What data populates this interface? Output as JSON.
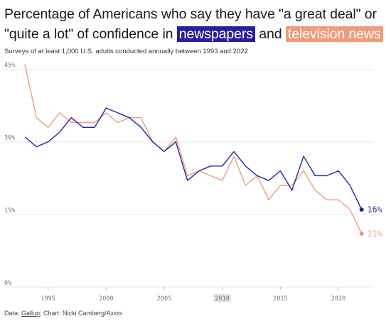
{
  "title": {
    "part1": "Percentage of Americans who say they have \"a great deal\" or \"quite a lot\" of confidence in",
    "highlight1": "newspapers",
    "part2": "and",
    "highlight2": "television news"
  },
  "subtitle": "Surveys of at least 1,000 U.S. adults conducted annually between 1993 and 2022",
  "source": {
    "prefix": "Data: ",
    "link": "Gallup",
    "suffix": "; Chart: Nicki Camberg/Axios"
  },
  "colors": {
    "newspapers": "#2a1ea0",
    "television": "#ef9b7e",
    "grid": "#e6e6e6"
  },
  "chart_data": {
    "type": "line",
    "title": "Percentage of Americans who say they have \"a great deal\" or \"quite a lot\" of confidence in newspapers and television news",
    "x": [
      1993,
      1994,
      1995,
      1996,
      1997,
      1998,
      1999,
      2000,
      2001,
      2002,
      2003,
      2004,
      2005,
      2006,
      2007,
      2008,
      2009,
      2010,
      2011,
      2012,
      2013,
      2014,
      2015,
      2016,
      2017,
      2018,
      2019,
      2020,
      2021,
      2022
    ],
    "series": [
      {
        "name": "newspapers",
        "values": [
          31,
          29,
          30,
          32,
          35,
          33,
          33,
          37,
          36,
          35,
          33,
          30,
          28,
          30,
          22,
          24,
          25,
          25,
          28,
          25,
          23,
          22,
          24,
          20,
          27,
          23,
          23,
          24,
          21,
          16
        ]
      },
      {
        "name": "television news",
        "values": [
          46,
          35,
          33,
          36,
          34,
          34,
          34,
          36,
          34,
          35,
          35,
          30,
          28,
          31,
          23,
          24,
          23,
          22,
          27,
          21,
          23,
          18,
          21,
          21,
          24,
          20,
          18,
          18,
          16,
          11
        ]
      }
    ],
    "end_labels": [
      "16%",
      "11%"
    ],
    "y_ticks": [
      "45%",
      "30%",
      "15%",
      "0%"
    ],
    "y_tick_values": [
      45,
      30,
      15,
      0
    ],
    "x_ticks": [
      "1995",
      "2000",
      "2005",
      "2010",
      "2015",
      "2020"
    ],
    "x_tick_values": [
      1995,
      2000,
      2005,
      2010,
      2015,
      2020
    ],
    "highlighted_x_tick": "2010",
    "ylim": [
      0,
      47
    ],
    "xlim": [
      1993,
      2023
    ],
    "xlabel": "",
    "ylabel": "",
    "grid": true
  }
}
